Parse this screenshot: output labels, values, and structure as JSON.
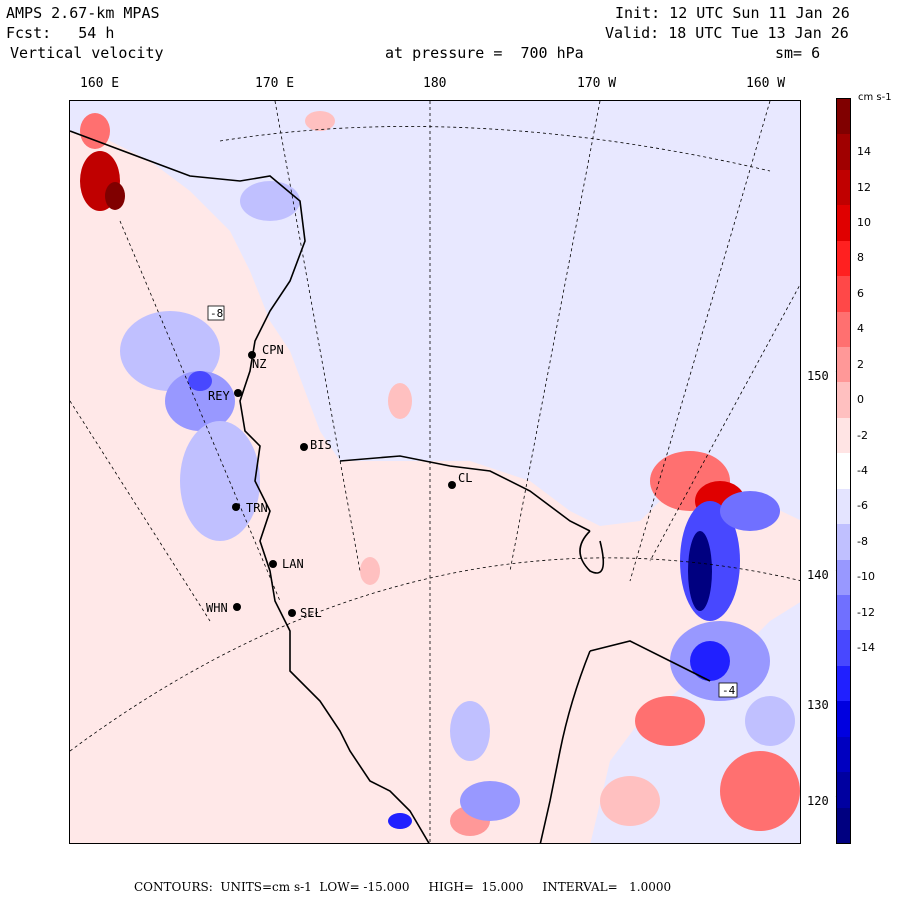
{
  "header": {
    "model": "AMPS 2.67-km MPAS",
    "forecast": "Fcst:   54 h",
    "field": "Vertical velocity",
    "init": "Init: 12 UTC Sun 11 Jan 26",
    "valid": "Valid: 18 UTC Tue 13 Jan 26",
    "pressure": "at pressure =  700 hPa",
    "smoothing": "sm= 6"
  },
  "longitude_labels": [
    "160 E",
    "170 E",
    "180",
    "170 W",
    "160 W"
  ],
  "latitude_labels": [
    "150 W",
    "140 W",
    "130 W",
    "120 W"
  ],
  "stations": [
    "CPN",
    "NZ",
    "REY",
    "BIS",
    "CL",
    "TRN",
    "LAN",
    "WHN",
    "SEL"
  ],
  "contour_labels": [
    "-8",
    "-4"
  ],
  "colorbar": {
    "units": "cm s-1",
    "ticks": [
      "14",
      "12",
      "10",
      "8",
      "6",
      "4",
      "2",
      "0",
      "-2",
      "-4",
      "-6",
      "-8",
      "-10",
      "-12",
      "-14"
    ],
    "colors": [
      "#800000",
      "#a00000",
      "#c00000",
      "#e00000",
      "#ff2020",
      "#ff4848",
      "#ff7070",
      "#ff9898",
      "#ffc0c0",
      "#ffe4e4",
      "#ffffff",
      "#e4e4ff",
      "#c0c0ff",
      "#9898ff",
      "#7070ff",
      "#4848ff",
      "#2020ff",
      "#0000e0",
      "#0000c0",
      "#0000a0",
      "#000080"
    ]
  },
  "footer": {
    "contours": "CONTOURS:  UNITS=cm s-1  LOW= -15.000     HIGH=  15.000     INTERVAL=   1.0000"
  },
  "map": {
    "ice_shelf_color": "#e4e4ff",
    "ocean_color": "#ffe8e8",
    "coastline_color": "#000000"
  }
}
